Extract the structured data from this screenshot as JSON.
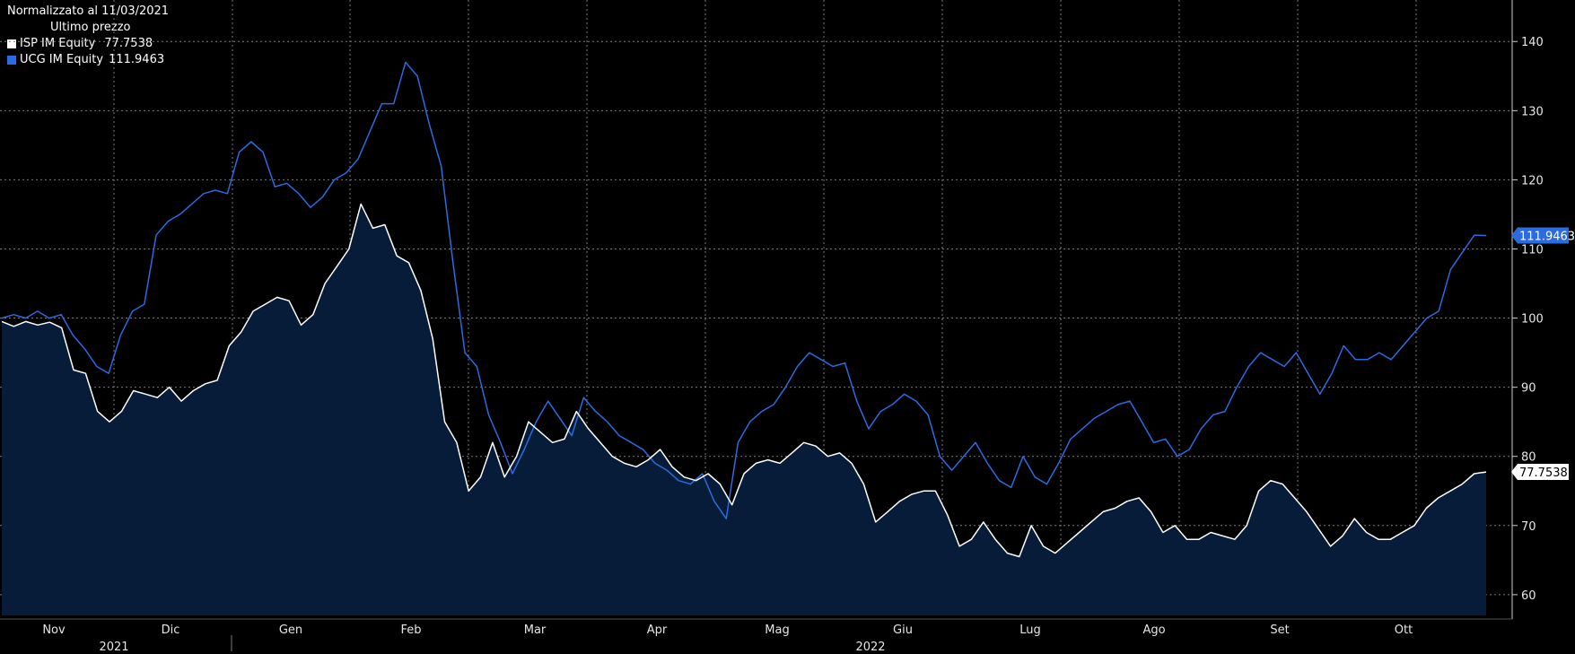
{
  "header": {
    "normalized_label": "Normalizzato al 11/03/2021",
    "last_price_label": "Ultimo prezzo"
  },
  "chart_data": {
    "type": "line",
    "title": "",
    "xlabel": "",
    "ylabel": "",
    "ylim": [
      57,
      146
    ],
    "yticks": [
      60,
      70,
      80,
      90,
      100,
      110,
      120,
      130,
      140
    ],
    "grid": true,
    "legend_position": "top-left",
    "x_month_labels": [
      "Nov",
      "Dic",
      "Gen",
      "Feb",
      "Mar",
      "Apr",
      "Mag",
      "Giu",
      "Lug",
      "Ago",
      "Set",
      "Ott"
    ],
    "x_year_labels": [
      "2021",
      "2022"
    ],
    "series": [
      {
        "name": "ISP IM Equity",
        "last_value_label": "77.7538",
        "color": "#ffffff",
        "fill": "#061c38",
        "values": [
          99.5,
          98.8,
          99.5,
          99.0,
          99.4,
          98.6,
          92.5,
          92.0,
          86.5,
          85.0,
          86.5,
          89.5,
          89.0,
          88.5,
          90.0,
          88.0,
          89.5,
          90.5,
          91.0,
          96.0,
          98.0,
          101.0,
          102.0,
          103.0,
          102.5,
          99.0,
          100.5,
          105.0,
          107.5,
          110.0,
          116.5,
          113.0,
          113.5,
          109.0,
          108.0,
          104.0,
          97.0,
          85.0,
          82.0,
          75.0,
          77.0,
          82.0,
          77.0,
          80.0,
          85.0,
          83.5,
          82.0,
          82.5,
          86.5,
          84.0,
          82.0,
          80.0,
          79.0,
          78.5,
          79.5,
          81.0,
          78.5,
          77.0,
          76.5,
          77.5,
          76.0,
          73.0,
          77.5,
          79.0,
          79.5,
          79.0,
          80.5,
          82.0,
          81.5,
          80.0,
          80.5,
          79.0,
          76.0,
          70.5,
          72.0,
          73.5,
          74.5,
          75.0,
          75.0,
          71.5,
          67.0,
          68.0,
          70.5,
          68.0,
          66.0,
          65.5,
          70.0,
          67.0,
          66.0,
          67.5,
          69.0,
          70.5,
          72.0,
          72.5,
          73.5,
          74.0,
          72.0,
          69.0,
          70.0,
          68.0,
          68.0,
          69.0,
          68.5,
          68.0,
          70.0,
          75.0,
          76.5,
          76.0,
          74.0,
          72.0,
          69.5,
          67.0,
          68.5,
          71.0,
          69.0,
          68.0,
          68.0,
          69.0,
          70.0,
          72.5,
          74.0,
          75.0,
          76.0,
          77.5,
          77.75
        ]
      },
      {
        "name": "UCG IM Equity",
        "last_value_label": "111.9463",
        "color": "#2a6be0",
        "values": [
          100.0,
          100.5,
          100.0,
          101.0,
          100.0,
          100.5,
          97.5,
          95.5,
          93.0,
          92.0,
          97.5,
          101.0,
          102.0,
          112.0,
          114.0,
          115.0,
          116.5,
          118.0,
          118.5,
          118.0,
          124.0,
          125.5,
          124.0,
          119.0,
          119.5,
          118.0,
          116.0,
          117.5,
          120.0,
          121.0,
          123.0,
          127.0,
          131.0,
          131.0,
          137.0,
          135.0,
          128.0,
          122.0,
          108.0,
          95.0,
          93.0,
          86.0,
          82.0,
          77.5,
          81.0,
          85.0,
          88.0,
          85.5,
          83.0,
          88.5,
          86.5,
          85.0,
          83.0,
          82.0,
          81.0,
          79.0,
          78.0,
          76.5,
          76.0,
          77.5,
          73.5,
          71.0,
          82.0,
          85.0,
          86.5,
          87.5,
          90.0,
          93.0,
          95.0,
          94.0,
          93.0,
          93.5,
          88.0,
          84.0,
          86.5,
          87.5,
          89.0,
          88.0,
          86.0,
          80.0,
          78.0,
          80.0,
          82.0,
          79.0,
          76.5,
          75.5,
          80.0,
          77.0,
          76.0,
          79.0,
          82.5,
          84.0,
          85.5,
          86.5,
          87.5,
          88.0,
          85.0,
          82.0,
          82.5,
          80.0,
          81.0,
          84.0,
          86.0,
          86.5,
          90.0,
          93.0,
          95.0,
          94.0,
          93.0,
          95.0,
          92.0,
          89.0,
          92.0,
          96.0,
          94.0,
          94.0,
          95.0,
          94.0,
          96.0,
          98.0,
          100.0,
          101.0,
          107.0,
          109.5,
          112.0,
          111.95
        ]
      }
    ]
  }
}
